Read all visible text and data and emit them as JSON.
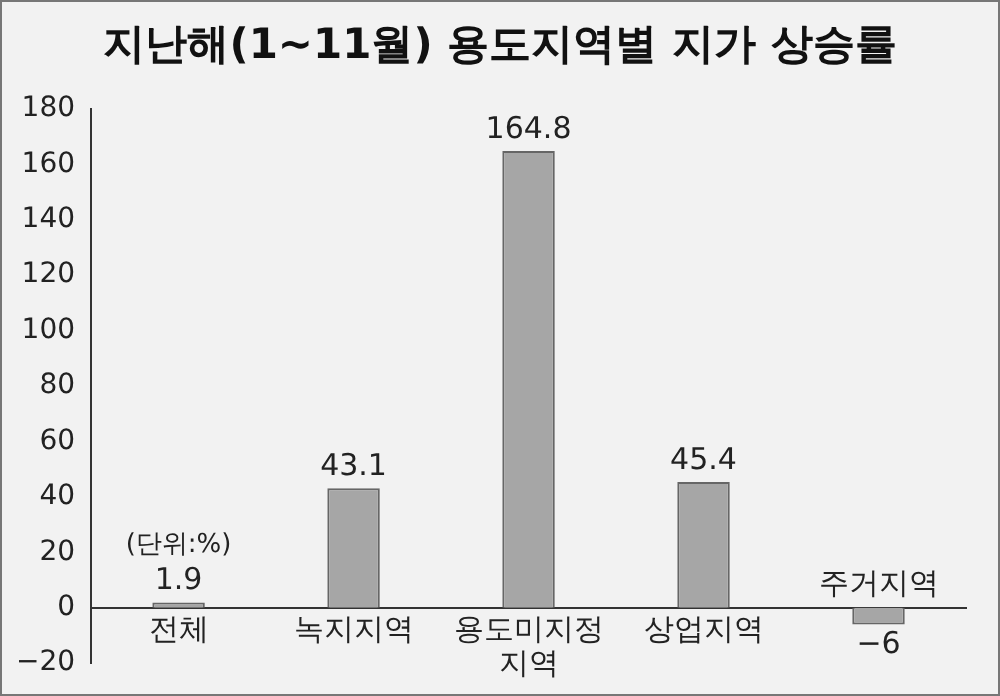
{
  "chart_data": {
    "type": "bar",
    "title": "지난해(1~11월) 용도지역별 지가 상승률",
    "categories": [
      "전체",
      "녹지지역",
      "용도미지정 지역",
      "상업지역",
      "주거지역"
    ],
    "values": [
      1.9,
      43.1,
      164.8,
      45.4,
      -6
    ],
    "color": "#a6a6a6",
    "ylim": [
      -20,
      180
    ],
    "yticks": [
      -20,
      0,
      20,
      40,
      60,
      80,
      100,
      120,
      140,
      160,
      180
    ],
    "grid": false,
    "legend": false,
    "data_labels": true,
    "annotations": [
      "(단위:%)"
    ]
  }
}
